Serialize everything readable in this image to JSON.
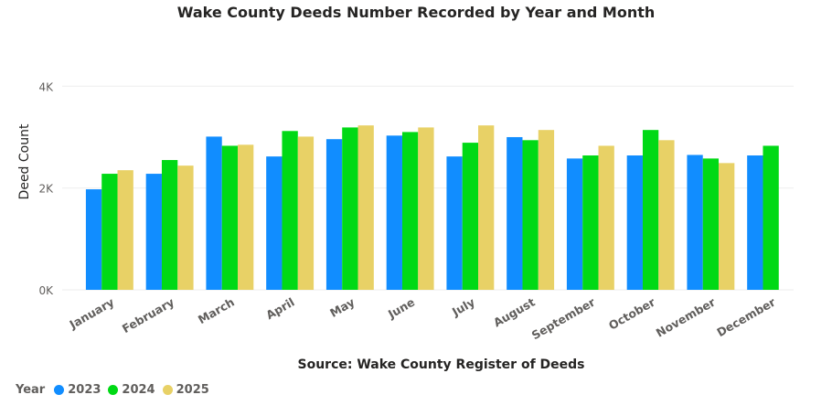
{
  "chart_data": {
    "type": "bar",
    "title": "Wake County Deeds Number Recorded by Year and Month",
    "subtitle": "Source: Wake County Register of Deeds",
    "xlabel": "",
    "ylabel": "Deed Count",
    "ylim": [
      0,
      4000
    ],
    "yticks": [
      0,
      2000,
      4000
    ],
    "ytick_labels": [
      "0K",
      "2K",
      "4K"
    ],
    "grid": true,
    "legend_title": "Year",
    "legend_position": "bottom-left",
    "categories": [
      "January",
      "February",
      "March",
      "April",
      "May",
      "June",
      "July",
      "August",
      "September",
      "October",
      "November",
      "December"
    ],
    "series": [
      {
        "name": "2023",
        "color": "#118DFF",
        "values": [
          1975,
          2280,
          3010,
          2620,
          2960,
          3030,
          2620,
          3000,
          2580,
          2640,
          2650,
          2640
        ]
      },
      {
        "name": "2024",
        "color": "#00D915",
        "values": [
          2280,
          2550,
          2830,
          3120,
          3190,
          3100,
          2890,
          2940,
          2640,
          3140,
          2580,
          2830
        ]
      },
      {
        "name": "2025",
        "color": "#E8D166",
        "values": [
          2350,
          2440,
          2850,
          3010,
          3230,
          3190,
          3230,
          3140,
          2830,
          2940,
          2490,
          null
        ]
      }
    ]
  }
}
